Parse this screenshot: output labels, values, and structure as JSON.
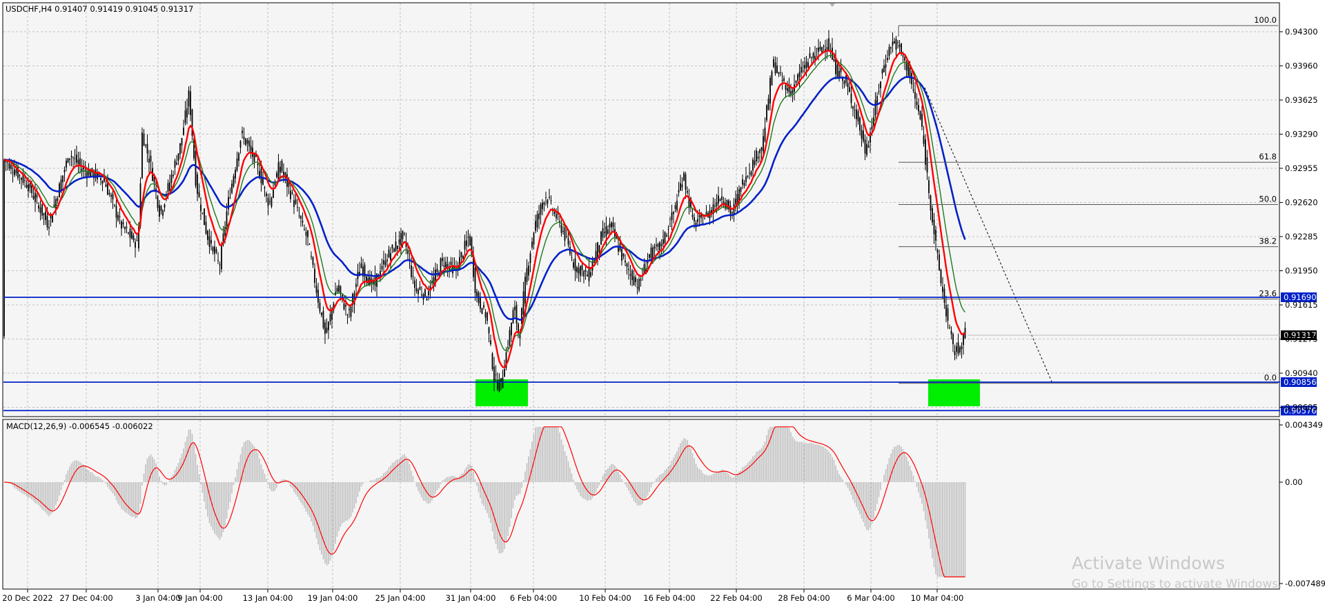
{
  "main_header": "USDCHF,H4  0.91407 0.91419 0.91045 0.91317",
  "macd_header": "MACD(12,26,9) -0.006545 -0.006022",
  "price_scale": [
    "0.94300",
    "0.93960",
    "0.93625",
    "0.93290",
    "0.92955",
    "0.92620",
    "0.92285",
    "0.91950",
    "0.91615",
    "0.91275",
    "0.90940",
    "0.90605"
  ],
  "macd_scale": [
    "0.004349",
    "0.00",
    "-0.007489"
  ],
  "time_labels": [
    "20 Dec 2022",
    "27 Dec 04:00",
    "3 Jan 04:00",
    "9 Jan 04:00",
    "13 Jan 04:00",
    "19 Jan 04:00",
    "25 Jan 04:00",
    "31 Jan 04:00",
    "6 Feb 04:00",
    "10 Feb 04:00",
    "16 Feb 04:00",
    "22 Feb 04:00",
    "28 Feb 04:00",
    "6 Mar 04:00",
    "10 Mar 04:00"
  ],
  "fib_levels": [
    {
      "label": "100.0",
      "price": 0.9436
    },
    {
      "label": "61.8",
      "price": 0.93017
    },
    {
      "label": "50.0",
      "price": 0.92602
    },
    {
      "label": "38.2",
      "price": 0.92187
    },
    {
      "label": "23.6",
      "price": 0.91673
    },
    {
      "label": "0.0",
      "price": 0.90845
    }
  ],
  "hlines": [
    {
      "label": "0.91690",
      "price": 0.9169
    },
    {
      "label": "0.90856",
      "price": 0.90856
    },
    {
      "label": "0.90576",
      "price": 0.90576
    }
  ],
  "current_price": "0.91317",
  "colors": {
    "bg": "#f5f5f5",
    "grid": "#c0c0c0",
    "candle": "#000000",
    "ma_fast": "#ff0000",
    "ma_mid": "#1b7a1b",
    "ma_slow": "#0020c8",
    "hline": "#0020c8",
    "zone": "#00ee00",
    "macd_hist": "#c0c0c0",
    "macd_signal": "#ff0000"
  },
  "watermark": {
    "line1": "Activate Windows",
    "line2": "Go to Settings to activate Windows."
  }
}
